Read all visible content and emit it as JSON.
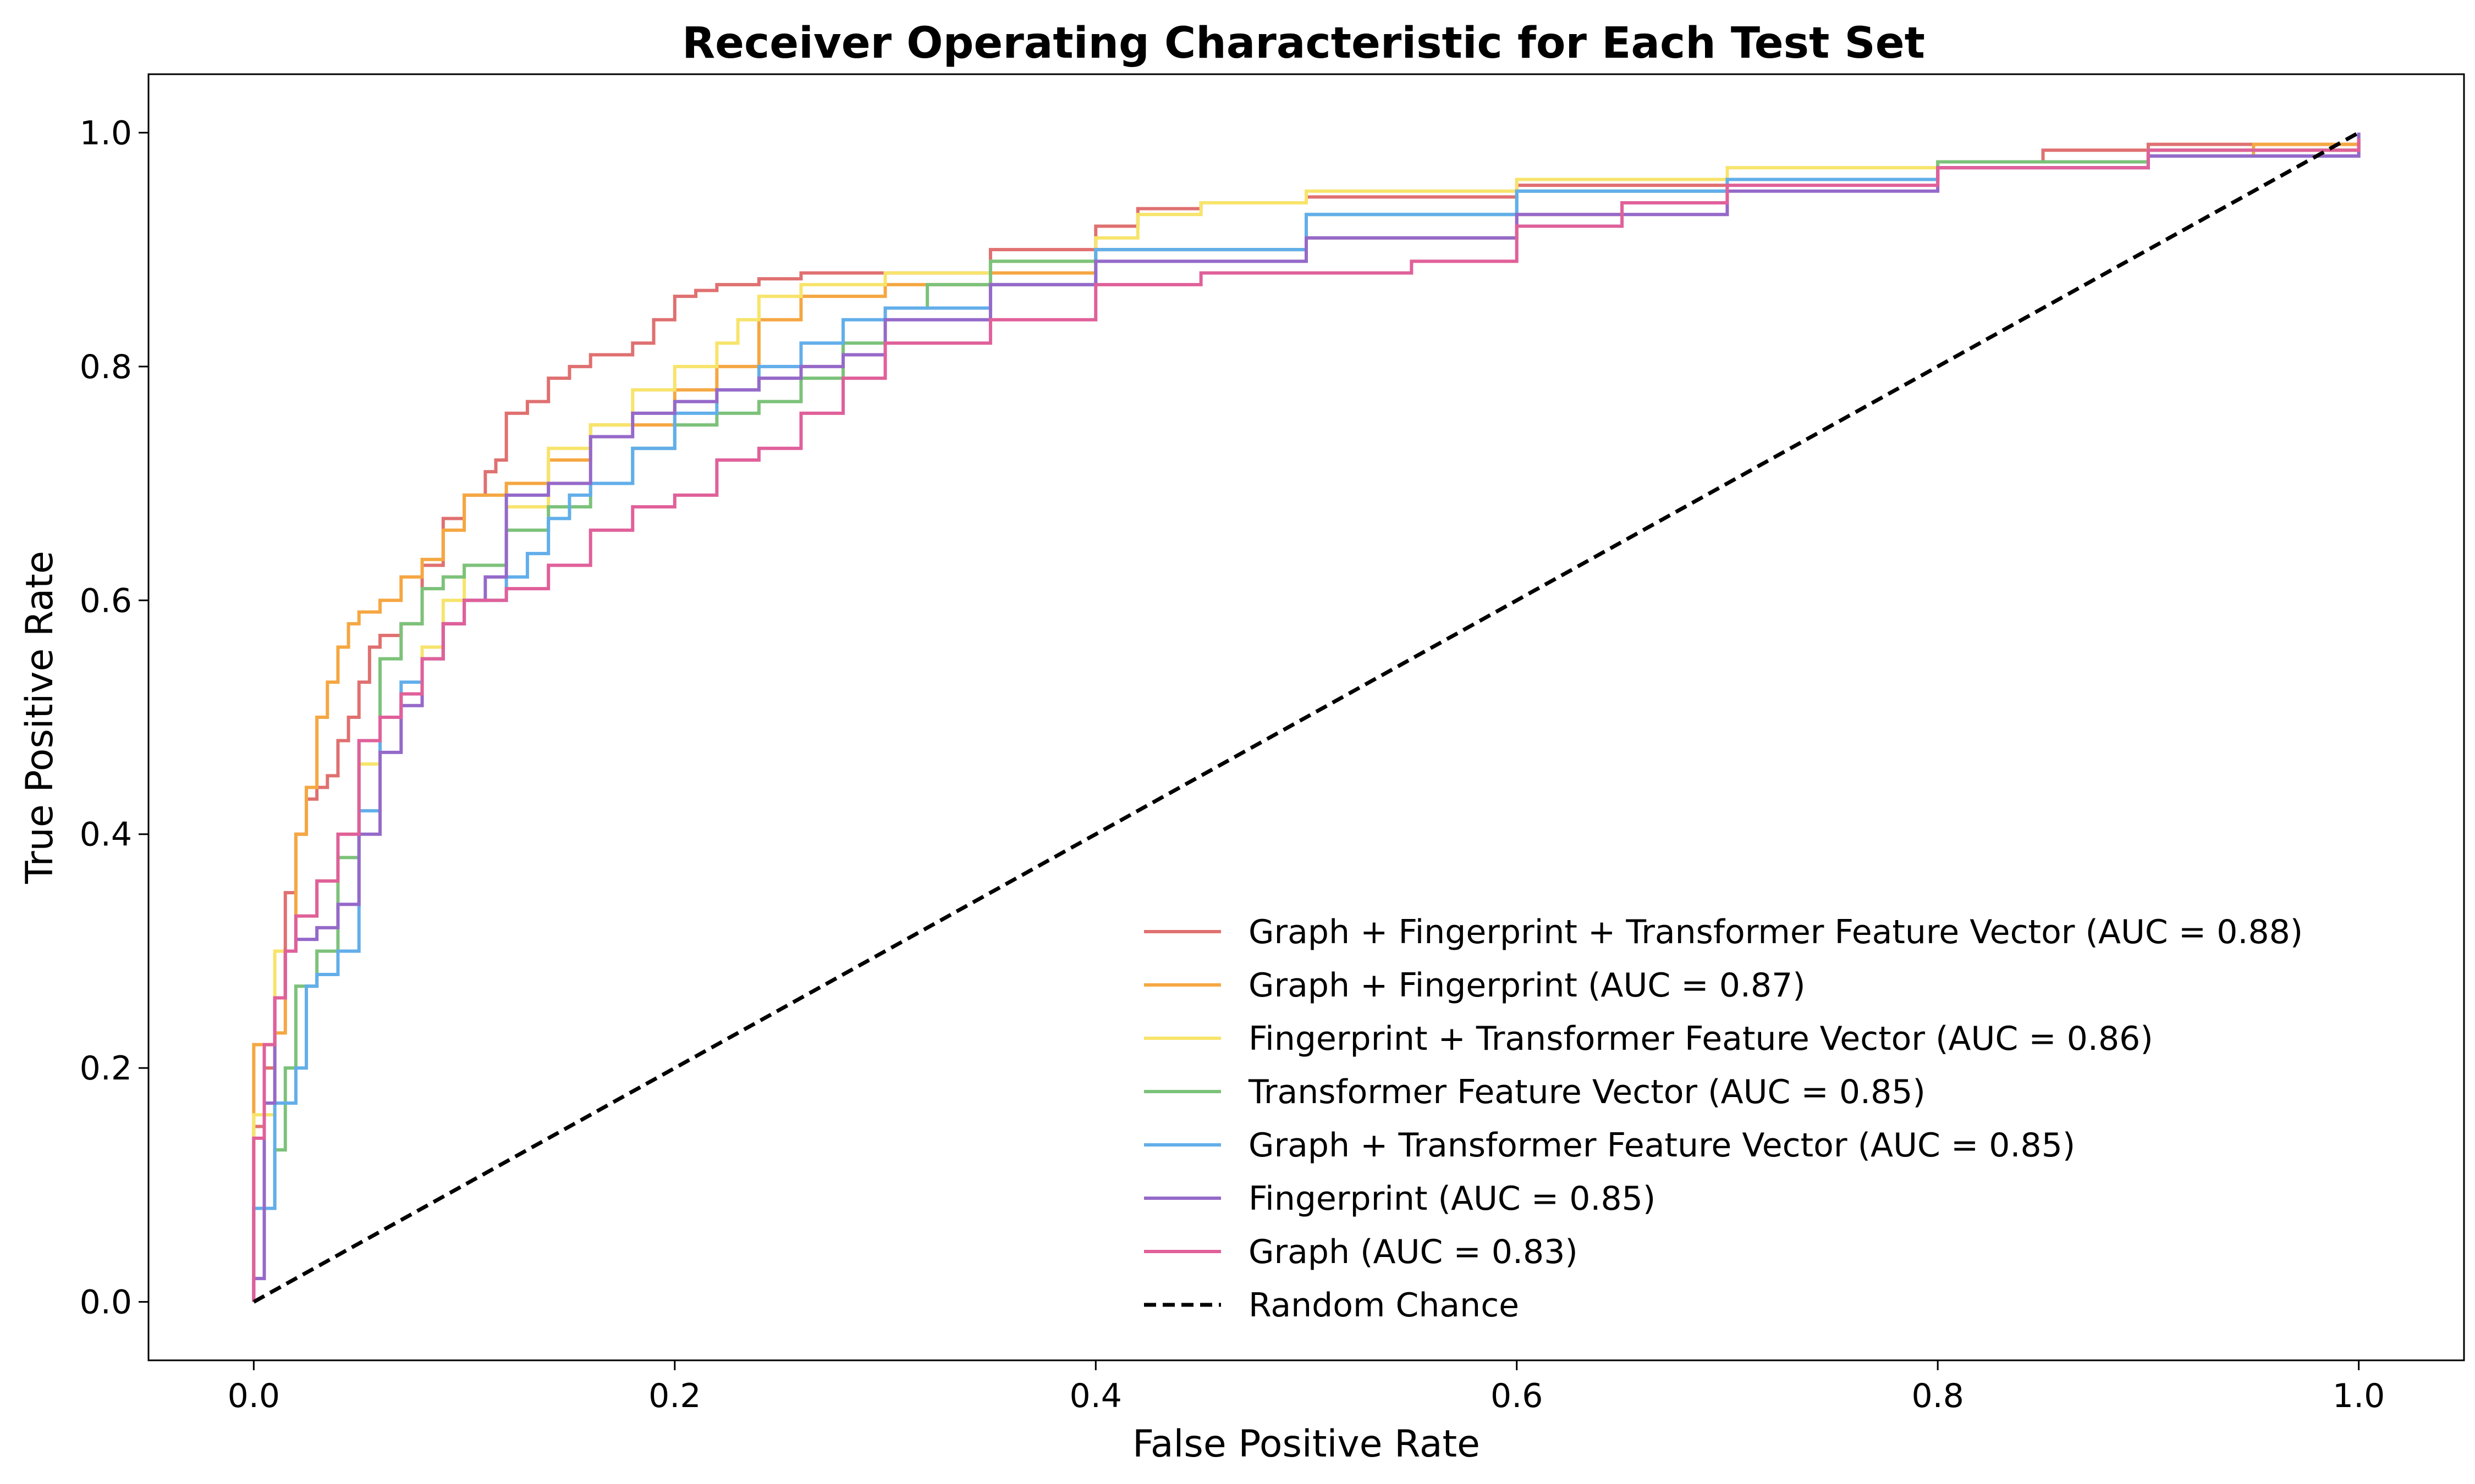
{
  "chart_data": {
    "type": "line",
    "title": "Receiver Operating Characteristic for Each Test Set",
    "xlabel": "False Positive Rate",
    "ylabel": "True Positive Rate",
    "xlim": [
      -0.05,
      1.05
    ],
    "ylim": [
      -0.05,
      1.05
    ],
    "xticks": [
      0.0,
      0.2,
      0.4,
      0.6,
      0.8,
      1.0
    ],
    "xtick_labels": [
      "0.0",
      "0.2",
      "0.4",
      "0.6",
      "0.8",
      "1.0"
    ],
    "yticks": [
      0.0,
      0.2,
      0.4,
      0.6,
      0.8,
      1.0
    ],
    "ytick_labels": [
      "0.0",
      "0.2",
      "0.4",
      "0.6",
      "0.8",
      "1.0"
    ],
    "grid": false,
    "legend_position": "lower-right",
    "series": [
      {
        "name": "Graph + Fingerprint + Transformer Feature Vector (AUC = 0.88)",
        "color": "#e07070",
        "style": "step",
        "x": [
          0.0,
          0.0,
          0.005,
          0.01,
          0.015,
          0.02,
          0.025,
          0.03,
          0.035,
          0.04,
          0.045,
          0.05,
          0.055,
          0.06,
          0.07,
          0.08,
          0.09,
          0.1,
          0.11,
          0.115,
          0.12,
          0.13,
          0.14,
          0.15,
          0.16,
          0.17,
          0.18,
          0.19,
          0.2,
          0.21,
          0.22,
          0.24,
          0.26,
          0.3,
          0.35,
          0.4,
          0.42,
          0.45,
          0.5,
          0.6,
          0.7,
          0.8,
          0.85,
          0.9,
          0.95,
          1.0
        ],
        "y": [
          0.0,
          0.15,
          0.2,
          0.26,
          0.35,
          0.4,
          0.43,
          0.44,
          0.45,
          0.48,
          0.5,
          0.53,
          0.56,
          0.57,
          0.58,
          0.63,
          0.67,
          0.69,
          0.71,
          0.72,
          0.76,
          0.77,
          0.79,
          0.8,
          0.81,
          0.81,
          0.82,
          0.84,
          0.86,
          0.865,
          0.87,
          0.875,
          0.88,
          0.88,
          0.9,
          0.92,
          0.935,
          0.94,
          0.945,
          0.955,
          0.96,
          0.975,
          0.985,
          0.99,
          0.99,
          0.995
        ]
      },
      {
        "name": "Graph + Fingerprint (AUC = 0.87)",
        "color": "#f5a742",
        "style": "step",
        "x": [
          0.0,
          0.0,
          0.01,
          0.015,
          0.02,
          0.025,
          0.03,
          0.035,
          0.04,
          0.045,
          0.05,
          0.06,
          0.07,
          0.08,
          0.09,
          0.1,
          0.12,
          0.14,
          0.16,
          0.2,
          0.22,
          0.24,
          0.26,
          0.3,
          0.35,
          0.4,
          0.5,
          0.6,
          0.65,
          0.7,
          0.8,
          0.9,
          0.95,
          1.0
        ],
        "y": [
          0.0,
          0.22,
          0.23,
          0.3,
          0.4,
          0.44,
          0.5,
          0.53,
          0.56,
          0.58,
          0.59,
          0.6,
          0.62,
          0.635,
          0.66,
          0.69,
          0.7,
          0.72,
          0.75,
          0.78,
          0.8,
          0.84,
          0.86,
          0.87,
          0.88,
          0.9,
          0.91,
          0.93,
          0.94,
          0.96,
          0.97,
          0.98,
          0.99,
          0.99
        ]
      },
      {
        "name": "Fingerprint + Transformer Feature Vector (AUC = 0.86)",
        "color": "#f7e46b",
        "style": "step",
        "x": [
          0.0,
          0.0,
          0.01,
          0.02,
          0.03,
          0.04,
          0.05,
          0.06,
          0.07,
          0.08,
          0.09,
          0.1,
          0.12,
          0.14,
          0.16,
          0.18,
          0.2,
          0.22,
          0.23,
          0.24,
          0.26,
          0.3,
          0.35,
          0.4,
          0.42,
          0.45,
          0.5,
          0.6,
          0.7,
          0.8,
          0.9,
          1.0
        ],
        "y": [
          0.0,
          0.16,
          0.3,
          0.33,
          0.36,
          0.4,
          0.46,
          0.5,
          0.52,
          0.56,
          0.6,
          0.63,
          0.68,
          0.73,
          0.75,
          0.78,
          0.8,
          0.82,
          0.84,
          0.86,
          0.87,
          0.88,
          0.89,
          0.91,
          0.93,
          0.94,
          0.95,
          0.96,
          0.97,
          0.975,
          0.985,
          0.995
        ]
      },
      {
        "name": "Transformer Feature Vector (AUC = 0.85)",
        "color": "#7cc27a",
        "style": "step",
        "x": [
          0.0,
          0.0,
          0.01,
          0.015,
          0.02,
          0.03,
          0.04,
          0.05,
          0.06,
          0.07,
          0.08,
          0.09,
          0.1,
          0.12,
          0.14,
          0.16,
          0.18,
          0.2,
          0.22,
          0.24,
          0.26,
          0.28,
          0.3,
          0.32,
          0.35,
          0.4,
          0.5,
          0.6,
          0.7,
          0.8,
          0.9,
          1.0
        ],
        "y": [
          0.0,
          0.08,
          0.13,
          0.2,
          0.27,
          0.3,
          0.38,
          0.48,
          0.55,
          0.58,
          0.61,
          0.62,
          0.63,
          0.66,
          0.68,
          0.7,
          0.73,
          0.75,
          0.76,
          0.77,
          0.79,
          0.82,
          0.85,
          0.87,
          0.89,
          0.9,
          0.93,
          0.95,
          0.96,
          0.975,
          0.985,
          0.995
        ]
      },
      {
        "name": "Graph + Transformer Feature Vector (AUC = 0.85)",
        "color": "#62aeea",
        "style": "step",
        "x": [
          0.0,
          0.0,
          0.01,
          0.02,
          0.025,
          0.03,
          0.04,
          0.05,
          0.06,
          0.07,
          0.08,
          0.09,
          0.1,
          0.12,
          0.13,
          0.14,
          0.15,
          0.16,
          0.18,
          0.2,
          0.22,
          0.24,
          0.26,
          0.28,
          0.3,
          0.35,
          0.4,
          0.5,
          0.6,
          0.7,
          0.8,
          0.9,
          1.0
        ],
        "y": [
          0.0,
          0.08,
          0.17,
          0.2,
          0.27,
          0.28,
          0.3,
          0.42,
          0.5,
          0.53,
          0.55,
          0.58,
          0.6,
          0.62,
          0.64,
          0.67,
          0.69,
          0.7,
          0.73,
          0.76,
          0.78,
          0.8,
          0.82,
          0.84,
          0.85,
          0.87,
          0.9,
          0.93,
          0.95,
          0.96,
          0.97,
          0.98,
          1.0
        ]
      },
      {
        "name": "Fingerprint (AUC = 0.85)",
        "color": "#9569c9",
        "style": "step",
        "x": [
          0.0,
          0.0,
          0.005,
          0.01,
          0.015,
          0.02,
          0.03,
          0.04,
          0.05,
          0.06,
          0.07,
          0.08,
          0.09,
          0.1,
          0.11,
          0.12,
          0.14,
          0.16,
          0.18,
          0.2,
          0.22,
          0.24,
          0.26,
          0.28,
          0.3,
          0.35,
          0.4,
          0.5,
          0.6,
          0.7,
          0.8,
          0.9,
          1.0
        ],
        "y": [
          0.0,
          0.02,
          0.17,
          0.26,
          0.3,
          0.31,
          0.32,
          0.34,
          0.4,
          0.47,
          0.51,
          0.55,
          0.58,
          0.6,
          0.62,
          0.69,
          0.7,
          0.74,
          0.76,
          0.77,
          0.78,
          0.79,
          0.8,
          0.81,
          0.84,
          0.87,
          0.89,
          0.91,
          0.93,
          0.95,
          0.97,
          0.98,
          1.0
        ]
      },
      {
        "name": "Graph (AUC = 0.83)",
        "color": "#e0609a",
        "style": "step",
        "x": [
          0.0,
          0.0,
          0.005,
          0.01,
          0.015,
          0.02,
          0.03,
          0.04,
          0.05,
          0.06,
          0.07,
          0.08,
          0.09,
          0.1,
          0.12,
          0.14,
          0.16,
          0.18,
          0.2,
          0.22,
          0.24,
          0.26,
          0.28,
          0.3,
          0.35,
          0.4,
          0.45,
          0.5,
          0.55,
          0.6,
          0.65,
          0.7,
          0.8,
          0.9,
          1.0
        ],
        "y": [
          0.0,
          0.14,
          0.22,
          0.26,
          0.3,
          0.33,
          0.36,
          0.4,
          0.48,
          0.5,
          0.52,
          0.55,
          0.58,
          0.6,
          0.61,
          0.63,
          0.66,
          0.68,
          0.69,
          0.72,
          0.73,
          0.76,
          0.79,
          0.82,
          0.84,
          0.87,
          0.88,
          0.88,
          0.89,
          0.92,
          0.94,
          0.955,
          0.97,
          0.985,
          0.995
        ]
      },
      {
        "name": "Random Chance",
        "color": "#000000",
        "style": "dashed",
        "x": [
          0.0,
          1.0
        ],
        "y": [
          0.0,
          1.0
        ]
      }
    ]
  }
}
